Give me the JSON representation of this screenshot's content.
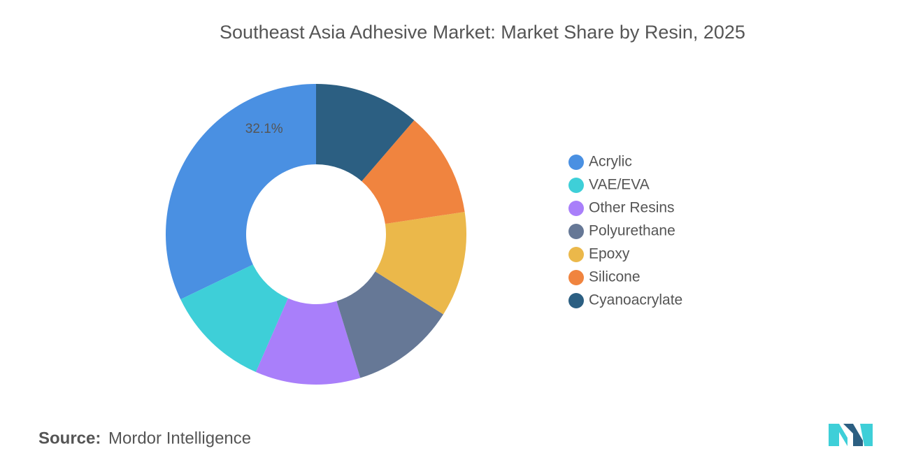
{
  "chart_data": {
    "type": "donut",
    "title": "Southeast Asia Adhesive Market: Market Share by Resin, 2025",
    "categories": [
      "Acrylic",
      "VAE/EVA",
      "Other Resins",
      "Polyurethane",
      "Epoxy",
      "Silicone",
      "Cyanoacrylate"
    ],
    "values": [
      32.1,
      11.3,
      11.3,
      11.3,
      11.3,
      11.3,
      11.3
    ],
    "value_labels": [
      "32.1%",
      null,
      null,
      null,
      null,
      null,
      null
    ],
    "colors": [
      "#4a90e2",
      "#3ecfd8",
      "#a97ffa",
      "#667896",
      "#ebb84a",
      "#f0843f",
      "#2c5f82"
    ],
    "legend": "right"
  },
  "source_label": "Source:",
  "source": "Mordor Intelligence"
}
